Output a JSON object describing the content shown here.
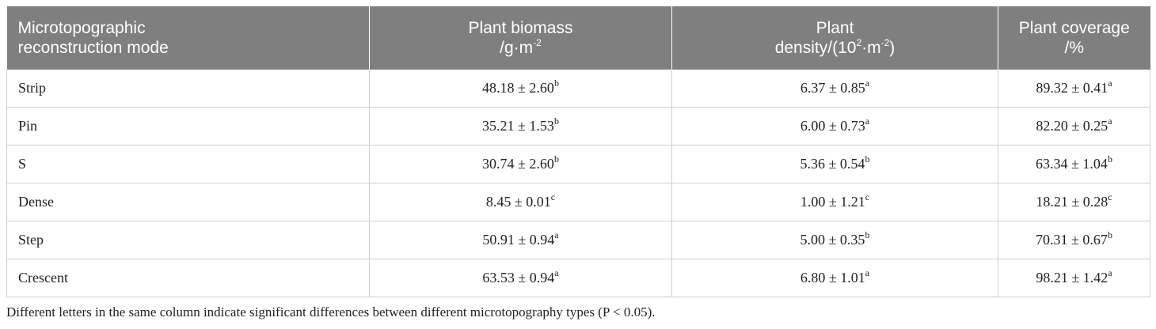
{
  "table": {
    "headers": {
      "mode": {
        "line1": "Microtopographic",
        "line2": "reconstruction mode"
      },
      "biomass": {
        "line1": "Plant biomass",
        "line2_pre": "/g·m",
        "line2_sup": "-2"
      },
      "density": {
        "line1": "Plant",
        "line2_pre": "density/(10",
        "line2_sup": "2",
        "line2_mid": "·m",
        "line2_sup2": "-2",
        "line2_post": ")"
      },
      "coverage": {
        "line1": "Plant coverage",
        "line2": "/%"
      }
    },
    "rows": [
      {
        "mode": "Strip",
        "biomass": "48.18 ± 2.60",
        "biomass_sig": "b",
        "density": "6.37 ± 0.85",
        "density_sig": "a",
        "coverage": "89.32 ± 0.41",
        "coverage_sig": "a"
      },
      {
        "mode": "Pin",
        "biomass": "35.21 ± 1.53",
        "biomass_sig": "b",
        "density": "6.00 ± 0.73",
        "density_sig": "a",
        "coverage": "82.20 ± 0.25",
        "coverage_sig": "a"
      },
      {
        "mode": "S",
        "biomass": "30.74 ± 2.60",
        "biomass_sig": "b",
        "density": "5.36 ± 0.54",
        "density_sig": "b",
        "coverage": "63.34 ± 1.04",
        "coverage_sig": "b"
      },
      {
        "mode": "Dense",
        "biomass": "8.45 ± 0.01",
        "biomass_sig": "c",
        "density": "1.00 ± 1.21",
        "density_sig": "c",
        "coverage": "18.21 ± 0.28",
        "coverage_sig": "c"
      },
      {
        "mode": "Step",
        "biomass": "50.91 ± 0.94",
        "biomass_sig": "a",
        "density": "5.00 ± 0.35",
        "density_sig": "b",
        "coverage": "70.31 ± 0.67",
        "coverage_sig": "b"
      },
      {
        "mode": "Crescent",
        "biomass": "63.53 ± 0.94",
        "biomass_sig": "a",
        "density": "6.80 ± 1.01",
        "density_sig": "a",
        "coverage": "98.21 ± 1.42",
        "coverage_sig": "a"
      }
    ],
    "footnote": "Different letters in the same column indicate significant differences between different microtopography types (P < 0.05)."
  },
  "colors": {
    "header_bg": "#7f7f7f",
    "header_text": "#ffffff",
    "grid": "#cfcfcf",
    "body_text": "#222222"
  }
}
